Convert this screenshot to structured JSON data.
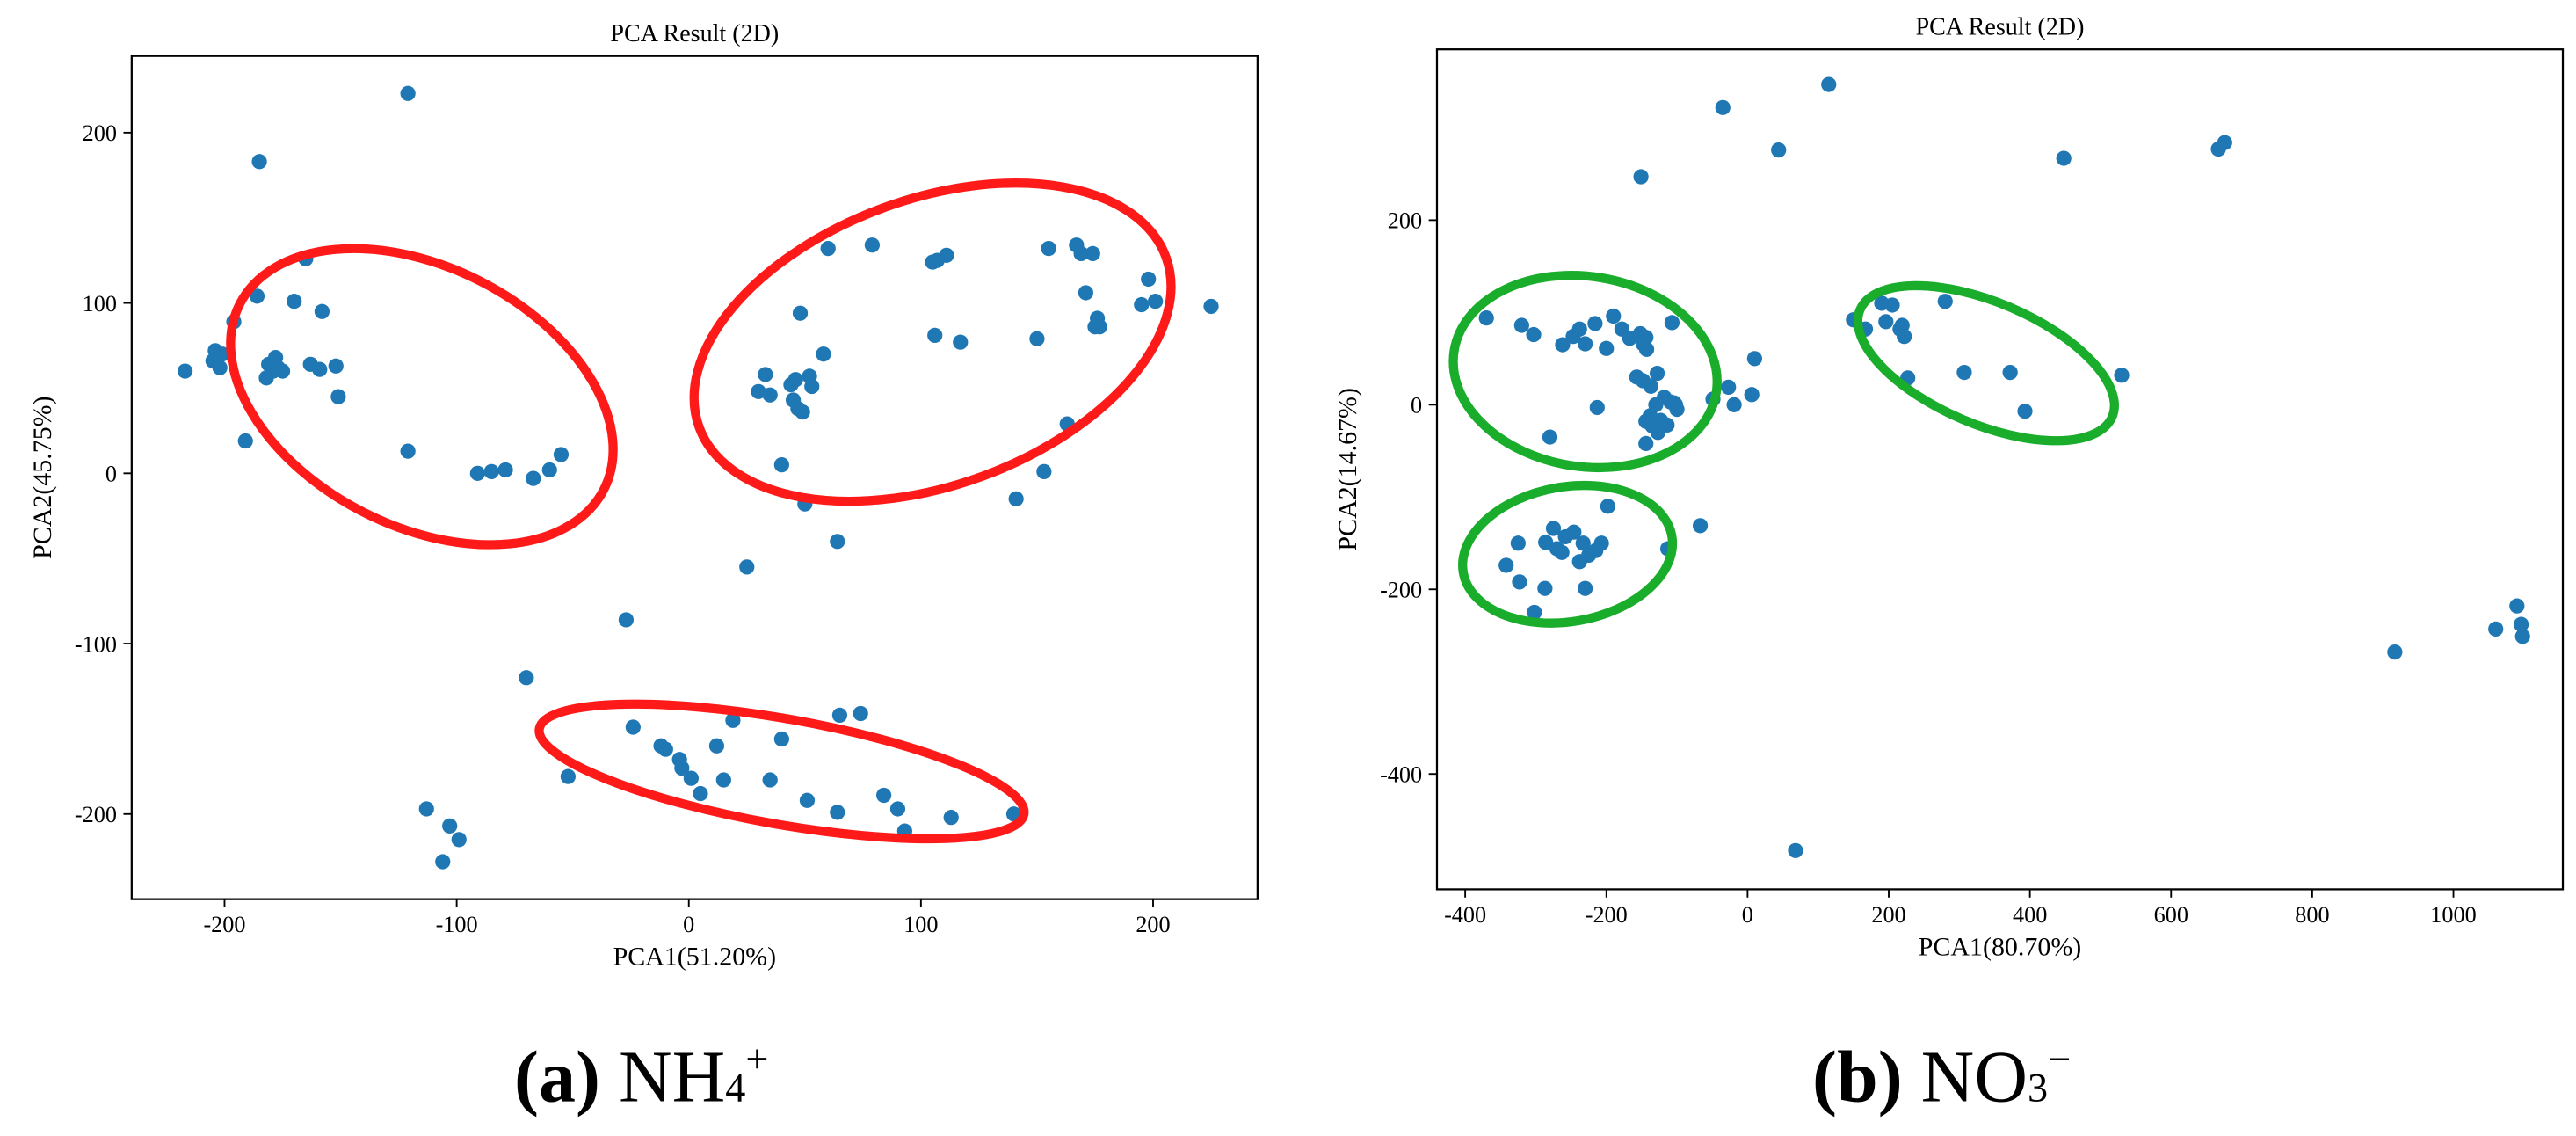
{
  "figure": {
    "caption_a": {
      "letter": "(a)",
      "ion": "NH",
      "sub": "4",
      "sup": "+"
    },
    "caption_b": {
      "letter": "(b)",
      "ion": "NO",
      "sub": "3",
      "sup": "−"
    }
  },
  "colors": {
    "points": "#1f77b4",
    "ellipse_a": "#ff1a1a",
    "ellipse_b": "#19ad2b",
    "axes": "#000000"
  },
  "chart_data": [
    {
      "type": "scatter",
      "panel": "a",
      "title": "PCA Result (2D)",
      "xlabel": "PCA1(51.20%)",
      "ylabel": "PCA2(45.75%)",
      "xlim": [
        -240,
        245
      ],
      "ylim": [
        -250,
        245
      ],
      "xticks": [
        -200,
        -100,
        0,
        100,
        200
      ],
      "yticks": [
        -200,
        -100,
        0,
        100,
        200
      ],
      "tick_labels_x": [
        "-200",
        "-100",
        "0",
        "100",
        "200"
      ],
      "tick_labels_y": [
        "-200",
        "-100",
        "0",
        "100",
        "200"
      ],
      "points": [
        [
          -217,
          60
        ],
        [
          -205,
          66
        ],
        [
          -204,
          72
        ],
        [
          -201,
          70
        ],
        [
          -202,
          62
        ],
        [
          -196,
          89
        ],
        [
          -191,
          19
        ],
        [
          -185,
          183
        ],
        [
          -186,
          104
        ],
        [
          -182,
          56
        ],
        [
          -181,
          64
        ],
        [
          -179,
          60
        ],
        [
          -177,
          62
        ],
        [
          -178,
          68
        ],
        [
          -175,
          60
        ],
        [
          -170,
          101
        ],
        [
          -165,
          126
        ],
        [
          -163,
          64
        ],
        [
          -159,
          61
        ],
        [
          -158,
          95
        ],
        [
          -152,
          63
        ],
        [
          -151,
          45
        ],
        [
          -121,
          223
        ],
        [
          -121,
          13
        ],
        [
          -91,
          0
        ],
        [
          -85,
          1
        ],
        [
          -79,
          2
        ],
        [
          -67,
          -3
        ],
        [
          -60,
          2
        ],
        [
          -55,
          11
        ],
        [
          -70,
          -120
        ],
        [
          -27,
          -86
        ],
        [
          -113,
          -197
        ],
        [
          -106,
          -228
        ],
        [
          -103,
          -207
        ],
        [
          -99,
          -215
        ],
        [
          -52,
          -178
        ],
        [
          -24,
          -149
        ],
        [
          -12,
          -160
        ],
        [
          -10,
          -162
        ],
        [
          -4,
          -168
        ],
        [
          -3,
          -173
        ],
        [
          1,
          -179
        ],
        [
          5,
          -188
        ],
        [
          12,
          -160
        ],
        [
          15,
          -180
        ],
        [
          19,
          -145
        ],
        [
          25,
          -55
        ],
        [
          30,
          48
        ],
        [
          33,
          58
        ],
        [
          35,
          46
        ],
        [
          40,
          5
        ],
        [
          40,
          -156
        ],
        [
          35,
          -180
        ],
        [
          44,
          52
        ],
        [
          45,
          43
        ],
        [
          46,
          55
        ],
        [
          47,
          38
        ],
        [
          48,
          94
        ],
        [
          49,
          36
        ],
        [
          50,
          -18
        ],
        [
          51,
          -192
        ],
        [
          52,
          57
        ],
        [
          53,
          51
        ],
        [
          58,
          70
        ],
        [
          60,
          132
        ],
        [
          64,
          -40
        ],
        [
          65,
          -142
        ],
        [
          64,
          -199
        ],
        [
          74,
          -141
        ],
        [
          79,
          134
        ],
        [
          84,
          -189
        ],
        [
          90,
          -197
        ],
        [
          93,
          -210
        ],
        [
          105,
          124
        ],
        [
          106,
          81
        ],
        [
          107,
          125
        ],
        [
          111,
          128
        ],
        [
          117,
          77
        ],
        [
          113,
          -202
        ],
        [
          141,
          -15
        ],
        [
          140,
          -200
        ],
        [
          150,
          79
        ],
        [
          153,
          1
        ],
        [
          155,
          132
        ],
        [
          163,
          29
        ],
        [
          167,
          134
        ],
        [
          169,
          129
        ],
        [
          171,
          106
        ],
        [
          174,
          129
        ],
        [
          176,
          91
        ],
        [
          175,
          86
        ],
        [
          177,
          86
        ],
        [
          195,
          99
        ],
        [
          198,
          114
        ],
        [
          201,
          101
        ],
        [
          225,
          98
        ]
      ],
      "ellipses": [
        {
          "cx": -115,
          "cy": 45,
          "rx": 88,
          "ry": 76,
          "rotate": 27
        },
        {
          "cx": 105,
          "cy": 77,
          "rx": 107,
          "ry": 84,
          "rotate": -20
        },
        {
          "cx": 40,
          "cy": -175,
          "rx": 106,
          "ry": 31,
          "rotate": 10
        }
      ]
    },
    {
      "type": "scatter",
      "panel": "b",
      "title": "PCA Result (2D)",
      "xlabel": "PCA1(80.70%)",
      "ylabel": "PCA2(14.67%)",
      "xlim": [
        -440,
        1155
      ],
      "ylim": [
        -525,
        385
      ],
      "xticks": [
        -400,
        -200,
        0,
        200,
        400,
        600,
        800,
        1000
      ],
      "yticks": [
        -400,
        -200,
        0,
        200
      ],
      "tick_labels_x": [
        "-400",
        "-200",
        "0",
        "200",
        "400",
        "600",
        "800",
        "1000"
      ],
      "tick_labels_y": [
        "-400",
        "-200",
        "0",
        "200"
      ],
      "points": [
        [
          -370,
          94
        ],
        [
          -320,
          86
        ],
        [
          -303,
          76
        ],
        [
          -262,
          65
        ],
        [
          -247,
          74
        ],
        [
          -238,
          82
        ],
        [
          -230,
          66
        ],
        [
          -216,
          88
        ],
        [
          -200,
          61
        ],
        [
          -190,
          96
        ],
        [
          -178,
          82
        ],
        [
          -167,
          72
        ],
        [
          -152,
          77
        ],
        [
          -148,
          66
        ],
        [
          -107,
          89
        ],
        [
          -144,
          73
        ],
        [
          -143,
          60
        ],
        [
          -157,
          30
        ],
        [
          -148,
          26
        ],
        [
          -137,
          20
        ],
        [
          -128,
          34
        ],
        [
          -118,
          8
        ],
        [
          -109,
          3
        ],
        [
          -104,
          2
        ],
        [
          -100,
          -5
        ],
        [
          -123,
          -17
        ],
        [
          -138,
          -12
        ],
        [
          -144,
          -18
        ],
        [
          -130,
          0
        ],
        [
          -127,
          -30
        ],
        [
          -135,
          -23
        ],
        [
          -144,
          -42
        ],
        [
          -114,
          -22
        ],
        [
          -102,
          0
        ],
        [
          -213,
          -3
        ],
        [
          -49,
          6
        ],
        [
          -27,
          19
        ],
        [
          -19,
          0
        ],
        [
          6,
          11
        ],
        [
          -280,
          -35
        ],
        [
          -35,
          322
        ],
        [
          44,
          276
        ],
        [
          115,
          347
        ],
        [
          -151,
          247
        ],
        [
          10,
          50
        ],
        [
          -342,
          -174
        ],
        [
          -325,
          -150
        ],
        [
          -323,
          -192
        ],
        [
          -286,
          -149
        ],
        [
          -275,
          -134
        ],
        [
          -270,
          -156
        ],
        [
          -263,
          -160
        ],
        [
          -258,
          -143
        ],
        [
          -246,
          -138
        ],
        [
          -238,
          -170
        ],
        [
          -233,
          -150
        ],
        [
          -225,
          -163
        ],
        [
          -215,
          -158
        ],
        [
          -207,
          -150
        ],
        [
          -198,
          -110
        ],
        [
          -287,
          -199
        ],
        [
          -230,
          -199
        ],
        [
          -302,
          -225
        ],
        [
          -113,
          -156
        ],
        [
          -67,
          -131
        ],
        [
          68,
          -483
        ],
        [
          150,
          92
        ],
        [
          167,
          82
        ],
        [
          190,
          110
        ],
        [
          196,
          90
        ],
        [
          205,
          108
        ],
        [
          216,
          82
        ],
        [
          219,
          86
        ],
        [
          222,
          74
        ],
        [
          227,
          29
        ],
        [
          280,
          112
        ],
        [
          307,
          35
        ],
        [
          372,
          35
        ],
        [
          393,
          -7
        ],
        [
          448,
          267
        ],
        [
          530,
          32
        ],
        [
          667,
          277
        ],
        [
          676,
          284
        ],
        [
          917,
          -268
        ],
        [
          1060,
          -243
        ],
        [
          1090,
          -218
        ],
        [
          1096,
          -238
        ],
        [
          1098,
          -251
        ]
      ],
      "ellipses": [
        {
          "cx": -230,
          "cy": 36,
          "rx": 188,
          "ry": 103,
          "rotate": 9
        },
        {
          "cx": -255,
          "cy": -162,
          "rx": 150,
          "ry": 73,
          "rotate": -10
        },
        {
          "cx": 338,
          "cy": 45,
          "rx": 194,
          "ry": 66,
          "rotate": 23
        }
      ]
    }
  ]
}
